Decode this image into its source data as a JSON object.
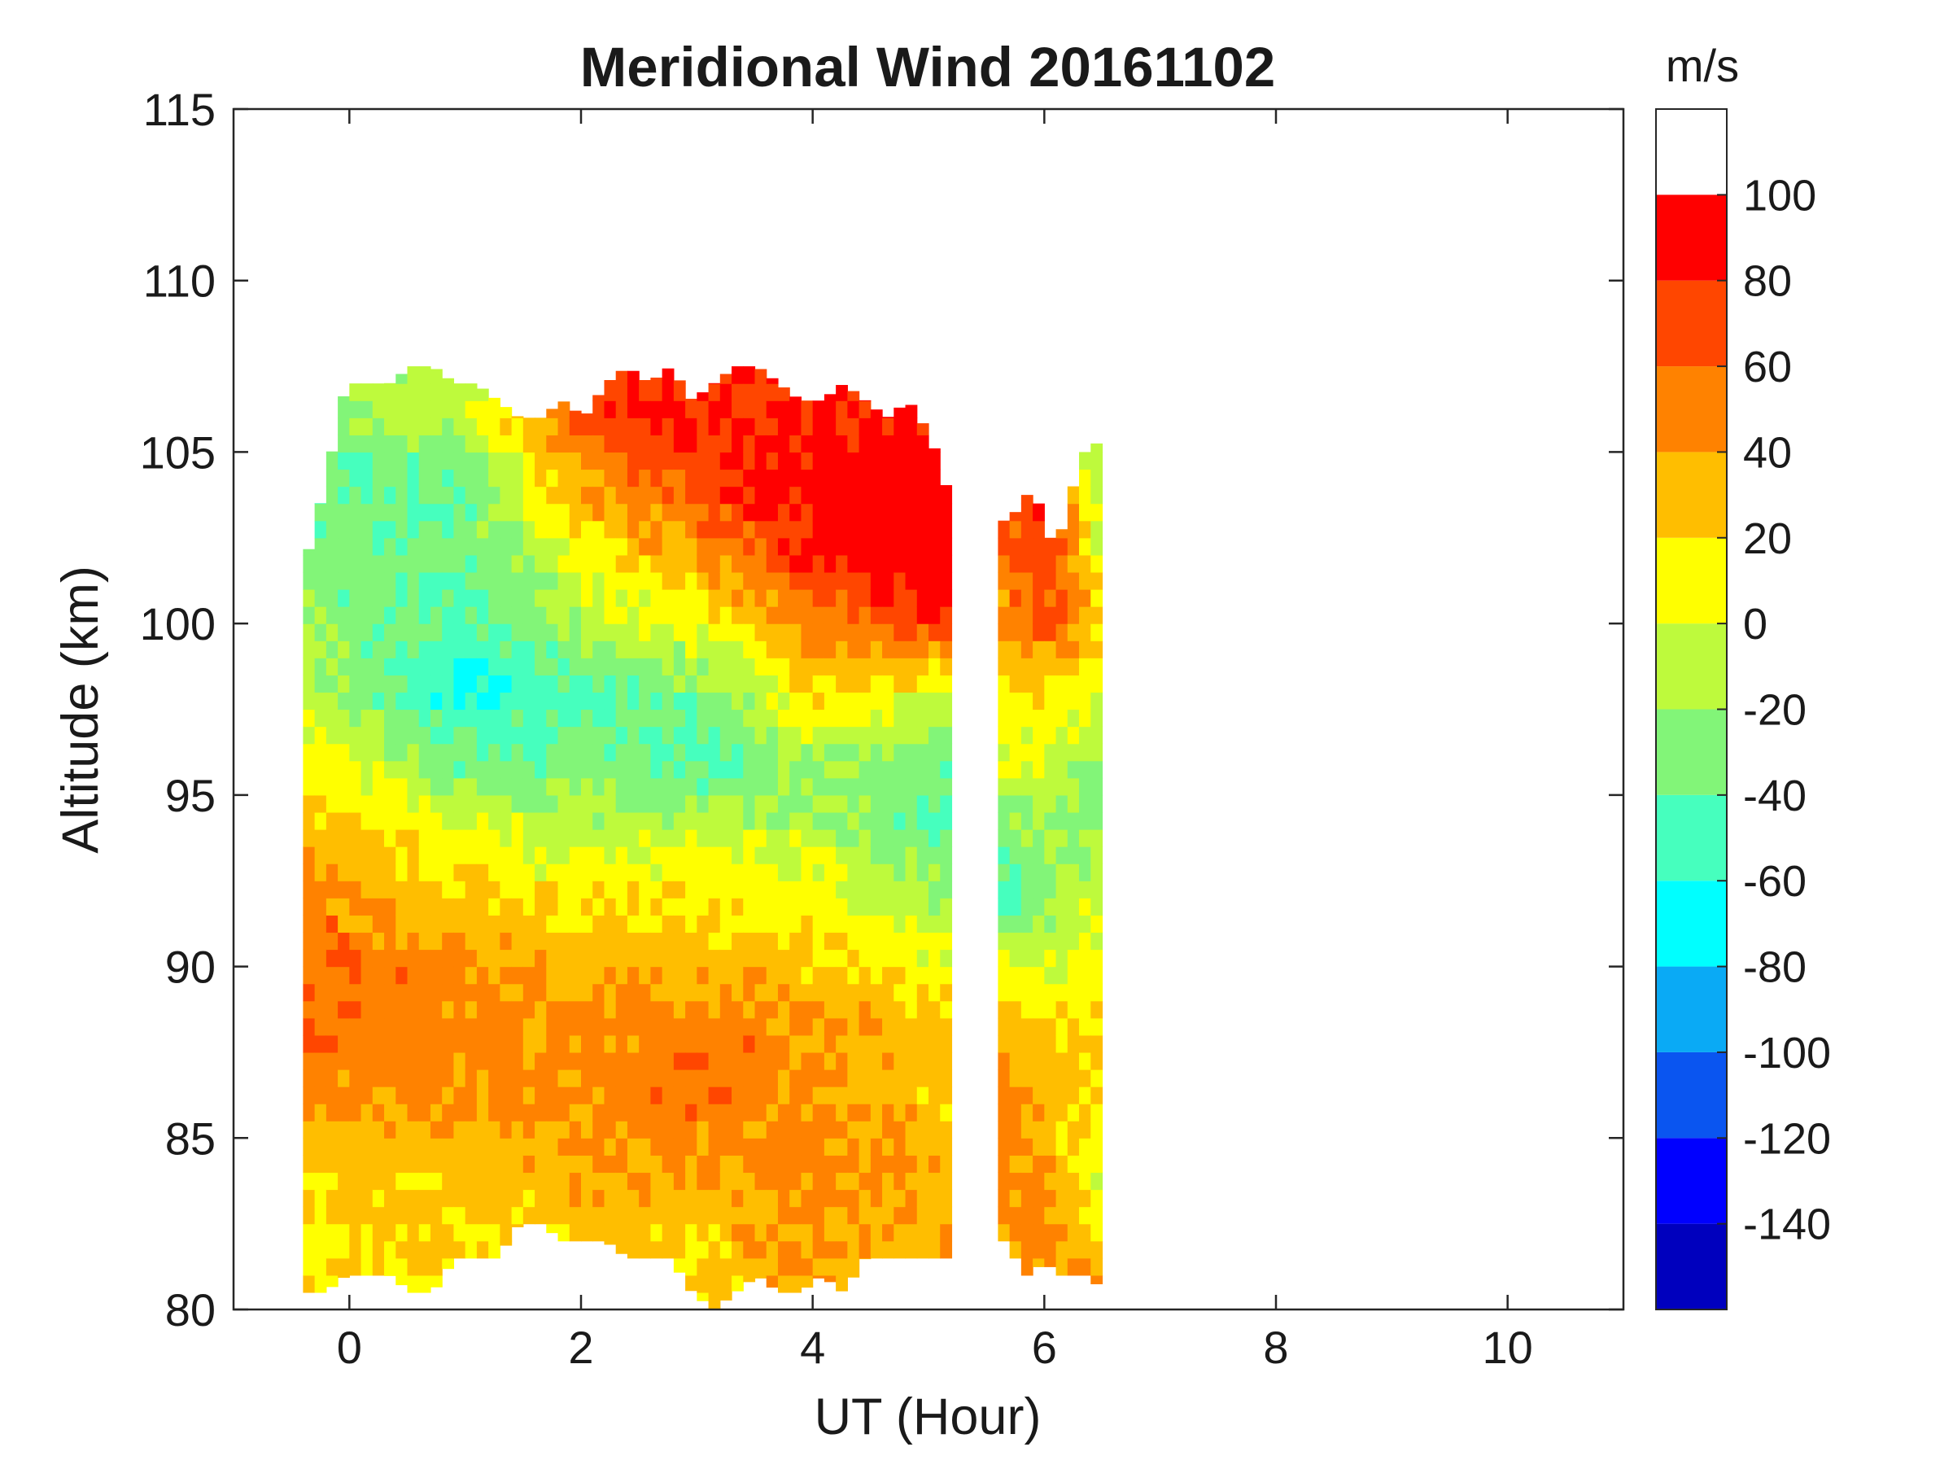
{
  "chart_data": {
    "type": "heatmap",
    "subtype": "filled-contour",
    "title": "Meridional Wind 20161102",
    "xlabel": "UT (Hour)",
    "ylabel": "Altitude (km)",
    "xlim": [
      -1,
      11
    ],
    "ylim": [
      80,
      115
    ],
    "xticks": [
      0,
      2,
      4,
      6,
      8,
      10
    ],
    "yticks": [
      80,
      85,
      90,
      95,
      100,
      105,
      110,
      115
    ],
    "colorbar": {
      "unit": "m/s",
      "range": [
        -160,
        120
      ],
      "levels": [
        -140,
        -120,
        -100,
        -80,
        -60,
        -40,
        -20,
        0,
        20,
        40,
        60,
        80,
        100
      ],
      "colors": [
        "#0000be",
        "#0000ff",
        "#0a55f0",
        "#0aaaf5",
        "#00ffff",
        "#46ffbe",
        "#82f578",
        "#befa3c",
        "#ffff00",
        "#ffbe00",
        "#ff8200",
        "#ff4600",
        "#ff0000"
      ]
    },
    "data_blocks": [
      {
        "x_range": [
          -0.4,
          5.2
        ],
        "alt_top": [
          101.5,
          104,
          107,
          107,
          107,
          107.5,
          107.5,
          107,
          107,
          106.5,
          106,
          106,
          106.5,
          106,
          107,
          107.5,
          107,
          107.5,
          106.5,
          107,
          107.5,
          107.5,
          107,
          106.5,
          106.5,
          107,
          106.5,
          106,
          106.5,
          105.5,
          103.5
        ],
        "alt_bottom": [
          80.5,
          80.5,
          81,
          81,
          81,
          80.5,
          80.5,
          81.5,
          81.5,
          81.5,
          82.5,
          82.5,
          82,
          82,
          82,
          81.5,
          81.5,
          81.5,
          80.5,
          80,
          80.5,
          81,
          80.5,
          80.5,
          81,
          80.5,
          81.5,
          81.5,
          81.5,
          81.5,
          81.5
        ],
        "wind_profile_alt": [
          80,
          82,
          84,
          86,
          88,
          90,
          92,
          94,
          96,
          98,
          100,
          102,
          104,
          106,
          108
        ],
        "wind_profile_ut": [
          -0.4,
          1.0,
          2.0,
          3.0,
          4.0,
          5.2
        ],
        "wind_values": [
          [
            10,
            15,
            15,
            25,
            35,
            20
          ],
          [
            15,
            20,
            25,
            25,
            40,
            30
          ],
          [
            25,
            30,
            35,
            40,
            50,
            30
          ],
          [
            45,
            40,
            45,
            55,
            40,
            25
          ],
          [
            55,
            50,
            45,
            55,
            45,
            30
          ],
          [
            60,
            45,
            35,
            35,
            25,
            10
          ],
          [
            50,
            25,
            15,
            20,
            10,
            -20
          ],
          [
            35,
            0,
            -10,
            -10,
            -10,
            -45
          ],
          [
            15,
            -40,
            -30,
            -50,
            -20,
            -35
          ],
          [
            -10,
            -65,
            -45,
            -30,
            20,
            0
          ],
          [
            -20,
            -50,
            -15,
            5,
            50,
            80
          ],
          [
            -30,
            -40,
            10,
            40,
            85,
            100
          ],
          [
            -40,
            -40,
            40,
            70,
            90,
            100
          ],
          [
            -30,
            -10,
            70,
            85,
            80,
            90
          ],
          [
            -30,
            -5,
            60,
            80,
            70,
            90
          ]
        ]
      },
      {
        "x_range": [
          5.6,
          6.5
        ],
        "alt_top": [
          103,
          103,
          103.5,
          104,
          103,
          102,
          103.5,
          104.5,
          105.5,
          105
        ],
        "alt_bottom": [
          82,
          82,
          81,
          81,
          81.5,
          81,
          81,
          81,
          81,
          80.5
        ],
        "wind_profile_alt": [
          80,
          82,
          84,
          86,
          88,
          90,
          92,
          94,
          96,
          98,
          100,
          102,
          104,
          106
        ],
        "wind_profile_ut": [
          5.6,
          6.0,
          6.5
        ],
        "wind_values": [
          [
            45,
            55,
            45
          ],
          [
            40,
            45,
            20
          ],
          [
            50,
            40,
            0
          ],
          [
            50,
            35,
            10
          ],
          [
            40,
            25,
            20
          ],
          [
            10,
            -5,
            10
          ],
          [
            -45,
            -25,
            0
          ],
          [
            -30,
            -20,
            -30
          ],
          [
            0,
            -5,
            -25
          ],
          [
            25,
            20,
            0
          ],
          [
            40,
            65,
            30
          ],
          [
            55,
            80,
            0
          ],
          [
            60,
            80,
            -20
          ],
          [
            60,
            80,
            -30
          ]
        ]
      }
    ]
  }
}
